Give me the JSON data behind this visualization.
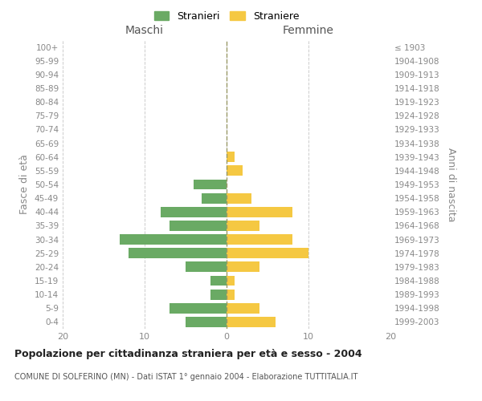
{
  "age_groups": [
    "0-4",
    "5-9",
    "10-14",
    "15-19",
    "20-24",
    "25-29",
    "30-34",
    "35-39",
    "40-44",
    "45-49",
    "50-54",
    "55-59",
    "60-64",
    "65-69",
    "70-74",
    "75-79",
    "80-84",
    "85-89",
    "90-94",
    "95-99",
    "100+"
  ],
  "birth_years": [
    "1999-2003",
    "1994-1998",
    "1989-1993",
    "1984-1988",
    "1979-1983",
    "1974-1978",
    "1969-1973",
    "1964-1968",
    "1959-1963",
    "1954-1958",
    "1949-1953",
    "1944-1948",
    "1939-1943",
    "1934-1938",
    "1929-1933",
    "1924-1928",
    "1919-1923",
    "1914-1918",
    "1909-1913",
    "1904-1908",
    "≤ 1903"
  ],
  "maschi": [
    5,
    7,
    2,
    2,
    5,
    12,
    13,
    7,
    8,
    3,
    4,
    0,
    0,
    0,
    0,
    0,
    0,
    0,
    0,
    0,
    0
  ],
  "femmine": [
    6,
    4,
    1,
    1,
    4,
    10,
    8,
    4,
    8,
    3,
    0,
    2,
    1,
    0,
    0,
    0,
    0,
    0,
    0,
    0,
    0
  ],
  "maschi_color": "#6aaa64",
  "femmine_color": "#f5c842",
  "title": "Popolazione per cittadinanza straniera per età e sesso - 2004",
  "subtitle": "COMUNE DI SOLFERINO (MN) - Dati ISTAT 1° gennaio 2004 - Elaborazione TUTTITALIA.IT",
  "xlabel_left": "Maschi",
  "xlabel_right": "Femmine",
  "ylabel_left": "Fasce di età",
  "ylabel_right": "Anni di nascita",
  "legend_maschi": "Stranieri",
  "legend_femmine": "Straniere",
  "xlim": 20,
  "bg_color": "#ffffff",
  "grid_color": "#cccccc",
  "bar_height": 0.75
}
